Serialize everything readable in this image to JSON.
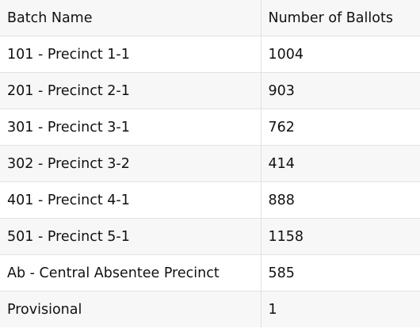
{
  "table": {
    "headers": [
      "Batch Name",
      "Number of Ballots"
    ],
    "rows": [
      [
        "101 - Precinct 1-1",
        "1004"
      ],
      [
        "201 - Precinct 2-1",
        "903"
      ],
      [
        "301 - Precinct 3-1",
        "762"
      ],
      [
        "302 - Precinct 3-2",
        "414"
      ],
      [
        "401 - Precinct 4-1",
        "888"
      ],
      [
        "501 - Precinct 5-1",
        "1158"
      ],
      [
        "Ab - Central Absentee Precinct",
        "585"
      ],
      [
        "Provisional",
        "1"
      ]
    ]
  },
  "colors": {
    "header_background": "#f7f7f7",
    "stripe_background": "#f7f7f7",
    "row_background": "#ffffff",
    "grid_line": "#e2e2e2",
    "text": "#111111"
  }
}
